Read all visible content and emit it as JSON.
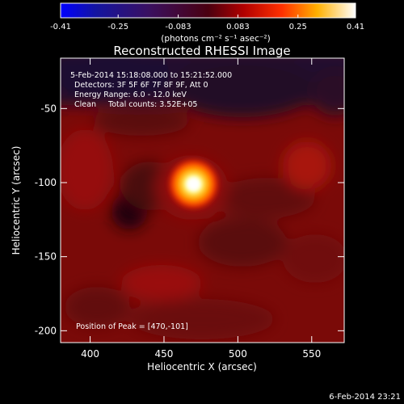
{
  "chart_data": {
    "type": "heatmap",
    "title": "Reconstructed RHESSI Image",
    "xlabel": "Heliocentric X (arcsec)",
    "ylabel": "Heliocentric Y (arcsec)",
    "xlim": [
      380,
      572
    ],
    "ylim": [
      -208,
      -16
    ],
    "x_ticks": [
      400,
      450,
      500,
      550
    ],
    "y_ticks": [
      -50,
      -100,
      -150,
      -200
    ],
    "colorbar": {
      "ticks": [
        "-0.41",
        "-0.25",
        "-0.083",
        "0.083",
        "0.25",
        "0.41"
      ],
      "range": [
        -0.41,
        0.41
      ],
      "unit_label": "(photons cm⁻² s⁻¹ asec⁻²)"
    },
    "annotations": [
      "5-Feb-2014 15:18:08.000 to 15:21:52.000",
      "Detectors: 3F 5F 6F 7F 8F 9F, Att 0",
      "Energy Range: 6.0 - 12.0 keV",
      "Clean     Total counts: 3.52E+05"
    ],
    "peak_label": "Position of Peak = [470,-101]",
    "peak": {
      "x": 470,
      "y": -101,
      "value": 0.41
    },
    "grid": false
  },
  "footer": {
    "timestamp": "6-Feb-2014 23:21"
  }
}
